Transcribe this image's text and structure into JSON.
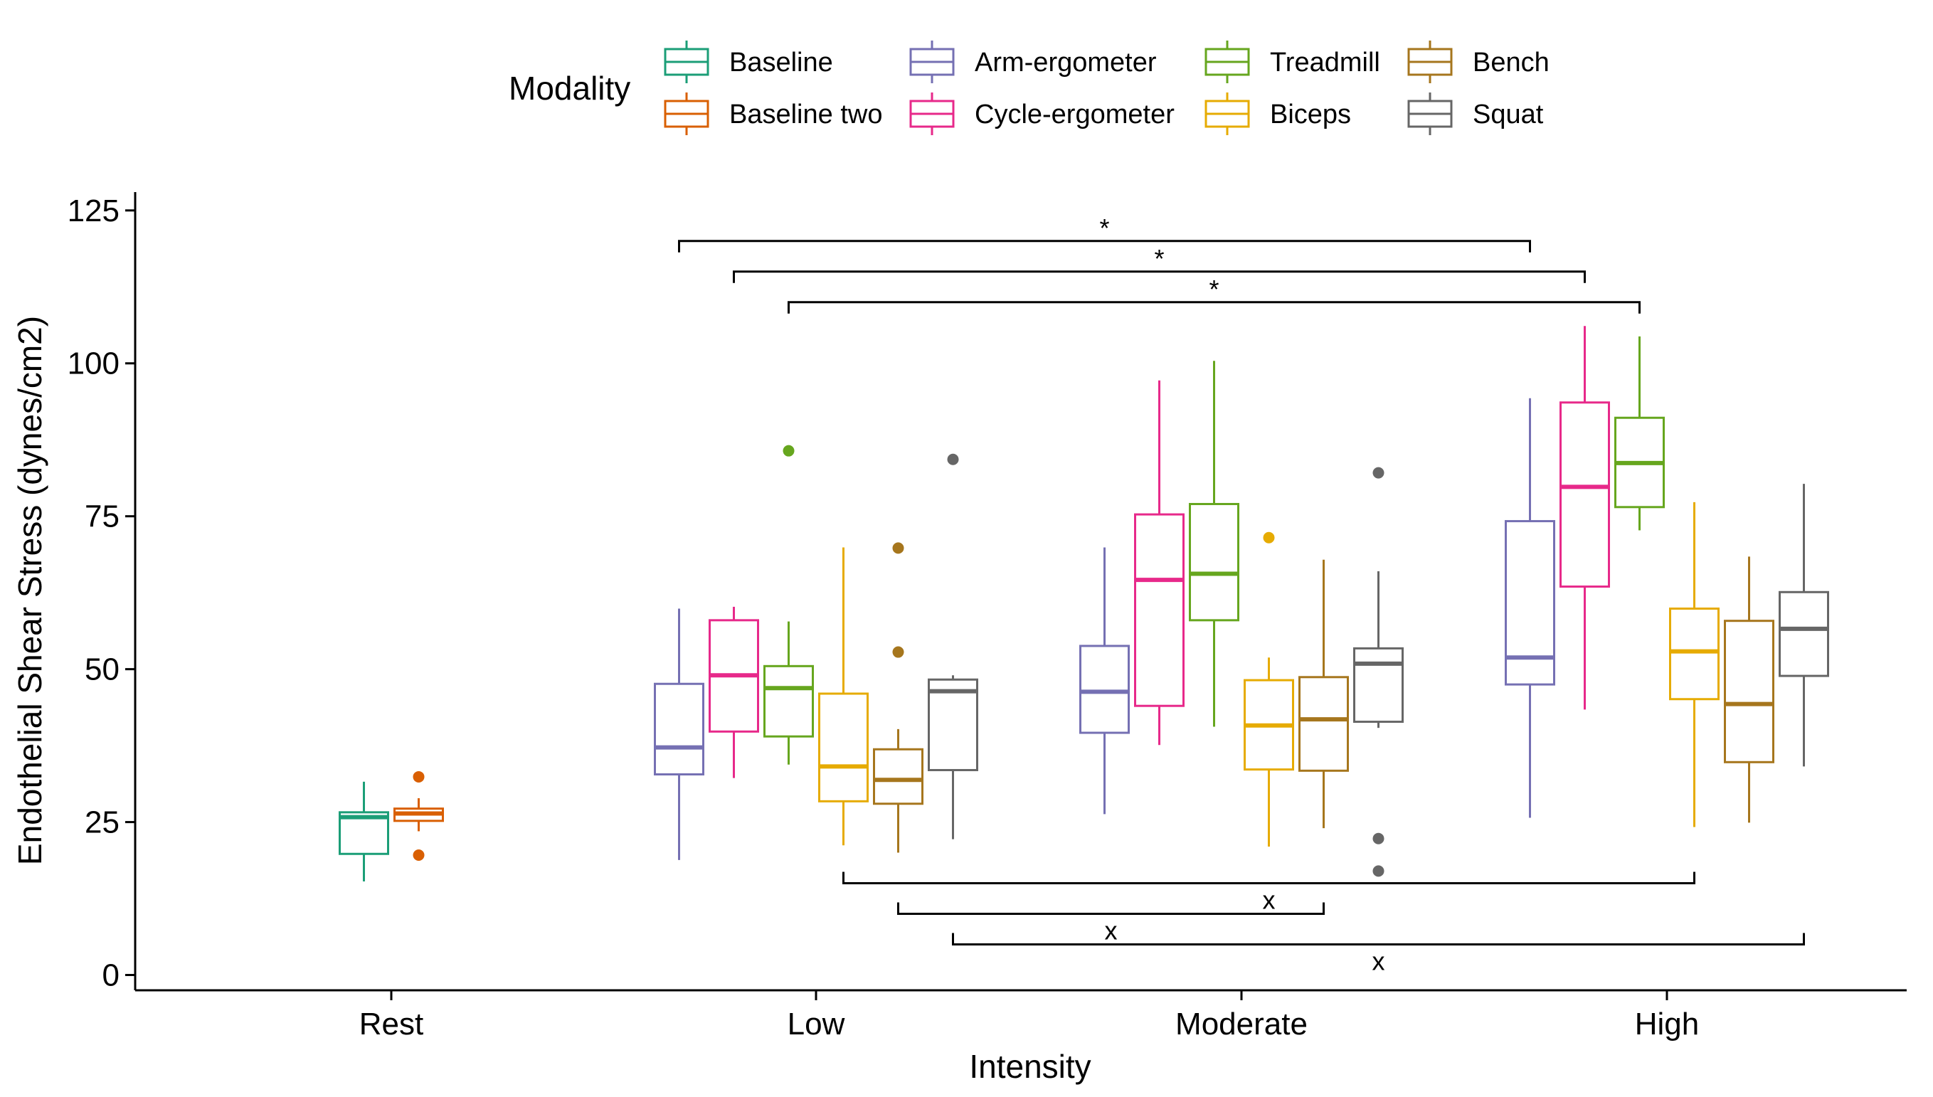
{
  "chart_data": {
    "type": "boxplot",
    "xlabel": "Intensity",
    "ylabel": "Endothelial Shear Stress (dynes/cm2)",
    "ylim": [
      -2.5,
      128
    ],
    "yticks": [
      0,
      25,
      50,
      75,
      100,
      125
    ],
    "categories": [
      "Rest",
      "Low",
      "Moderate",
      "High"
    ],
    "grid": false,
    "legend": {
      "title": "Modality",
      "placement": "top",
      "columns": [
        [
          "Baseline",
          "Baseline two"
        ],
        [
          "Arm-ergometer",
          "Cycle-ergometer"
        ],
        [
          "Treadmill",
          "Biceps"
        ],
        [
          "Bench",
          "Squat"
        ]
      ]
    },
    "series": [
      {
        "name": "Baseline",
        "color": "#1b9e77"
      },
      {
        "name": "Baseline two",
        "color": "#d95f02"
      },
      {
        "name": "Arm-ergometer",
        "color": "#7570b3"
      },
      {
        "name": "Cycle-ergometer",
        "color": "#e7298a"
      },
      {
        "name": "Treadmill",
        "color": "#66a61e"
      },
      {
        "name": "Biceps",
        "color": "#e6ab02"
      },
      {
        "name": "Bench",
        "color": "#a6761d"
      },
      {
        "name": "Squat",
        "color": "#666666"
      }
    ],
    "boxes": [
      {
        "category": "Rest",
        "series": "Baseline",
        "min": 15.3,
        "q1": 19.8,
        "median": 25.8,
        "q3": 26.6,
        "max": 31.6,
        "outliers": []
      },
      {
        "category": "Rest",
        "series": "Baseline two",
        "min": 23.5,
        "q1": 25.2,
        "median": 26.4,
        "q3": 27.2,
        "max": 28.9,
        "outliers": [
          32.4,
          19.6
        ]
      },
      {
        "category": "Low",
        "series": "Arm-ergometer",
        "min": 18.8,
        "q1": 32.8,
        "median": 37.2,
        "q3": 47.6,
        "max": 59.9,
        "outliers": []
      },
      {
        "category": "Low",
        "series": "Cycle-ergometer",
        "min": 32.2,
        "q1": 39.8,
        "median": 49.0,
        "q3": 58.0,
        "max": 60.2,
        "outliers": []
      },
      {
        "category": "Low",
        "series": "Treadmill",
        "min": 34.4,
        "q1": 39.0,
        "median": 46.9,
        "q3": 50.5,
        "max": 57.8,
        "outliers": [
          85.7
        ]
      },
      {
        "category": "Low",
        "series": "Biceps",
        "min": 21.2,
        "q1": 28.4,
        "median": 34.1,
        "q3": 46.0,
        "max": 69.9,
        "outliers": []
      },
      {
        "category": "Low",
        "series": "Bench",
        "min": 20.0,
        "q1": 28.0,
        "median": 31.9,
        "q3": 36.9,
        "max": 40.2,
        "outliers": [
          69.8,
          52.8
        ]
      },
      {
        "category": "Low",
        "series": "Squat",
        "min": 22.2,
        "q1": 33.5,
        "median": 46.4,
        "q3": 48.3,
        "max": 49.0,
        "outliers": [
          84.3
        ]
      },
      {
        "category": "Moderate",
        "series": "Arm-ergometer",
        "min": 26.3,
        "q1": 39.6,
        "median": 46.3,
        "q3": 53.8,
        "max": 69.9,
        "outliers": []
      },
      {
        "category": "Moderate",
        "series": "Cycle-ergometer",
        "min": 37.6,
        "q1": 44.0,
        "median": 64.6,
        "q3": 75.3,
        "max": 97.2,
        "outliers": []
      },
      {
        "category": "Moderate",
        "series": "Treadmill",
        "min": 40.6,
        "q1": 58.0,
        "median": 65.6,
        "q3": 77.0,
        "max": 100.4,
        "outliers": []
      },
      {
        "category": "Moderate",
        "series": "Biceps",
        "min": 21.0,
        "q1": 33.6,
        "median": 40.8,
        "q3": 48.2,
        "max": 51.9,
        "outliers": [
          71.5
        ]
      },
      {
        "category": "Moderate",
        "series": "Bench",
        "min": 24.0,
        "q1": 33.4,
        "median": 41.8,
        "q3": 48.7,
        "max": 67.9,
        "outliers": []
      },
      {
        "category": "Moderate",
        "series": "Squat",
        "min": 40.4,
        "q1": 41.4,
        "median": 50.9,
        "q3": 53.4,
        "max": 66.0,
        "outliers": [
          82.1,
          22.3,
          17.0
        ]
      },
      {
        "category": "High",
        "series": "Arm-ergometer",
        "min": 25.7,
        "q1": 47.5,
        "median": 51.9,
        "q3": 74.2,
        "max": 94.3,
        "outliers": []
      },
      {
        "category": "High",
        "series": "Cycle-ergometer",
        "min": 43.4,
        "q1": 63.5,
        "median": 79.8,
        "q3": 93.6,
        "max": 106.1,
        "outliers": []
      },
      {
        "category": "High",
        "series": "Treadmill",
        "min": 72.7,
        "q1": 76.5,
        "median": 83.7,
        "q3": 91.1,
        "max": 104.4,
        "outliers": []
      },
      {
        "category": "High",
        "series": "Biceps",
        "min": 24.2,
        "q1": 45.1,
        "median": 52.9,
        "q3": 59.9,
        "max": 77.3,
        "outliers": []
      },
      {
        "category": "High",
        "series": "Bench",
        "min": 24.9,
        "q1": 34.8,
        "median": 44.3,
        "q3": 57.9,
        "max": 68.4,
        "outliers": []
      },
      {
        "category": "High",
        "series": "Squat",
        "min": 34.1,
        "q1": 48.9,
        "median": 56.6,
        "q3": 62.6,
        "max": 80.3,
        "outliers": []
      }
    ],
    "annotations": [
      {
        "label": "*",
        "from": {
          "category": "Low",
          "series": "Arm-ergometer"
        },
        "to": {
          "category": "High",
          "series": "Arm-ergometer"
        },
        "y": 120,
        "side": "top"
      },
      {
        "label": "*",
        "from": {
          "category": "Low",
          "series": "Cycle-ergometer"
        },
        "to": {
          "category": "High",
          "series": "Cycle-ergometer"
        },
        "y": 115,
        "side": "top"
      },
      {
        "label": "*",
        "from": {
          "category": "Low",
          "series": "Treadmill"
        },
        "to": {
          "category": "High",
          "series": "Treadmill"
        },
        "y": 110,
        "side": "top"
      },
      {
        "label": "x",
        "from": {
          "category": "Low",
          "series": "Biceps"
        },
        "to": {
          "category": "High",
          "series": "Biceps"
        },
        "y": 15,
        "side": "bottom"
      },
      {
        "label": "x",
        "from": {
          "category": "Low",
          "series": "Bench"
        },
        "to": {
          "category": "Moderate",
          "series": "Bench"
        },
        "y": 10,
        "side": "bottom"
      },
      {
        "label": "x",
        "from": {
          "category": "Low",
          "series": "Squat"
        },
        "to": {
          "category": "High",
          "series": "Squat"
        },
        "y": 5,
        "side": "bottom"
      }
    ]
  }
}
